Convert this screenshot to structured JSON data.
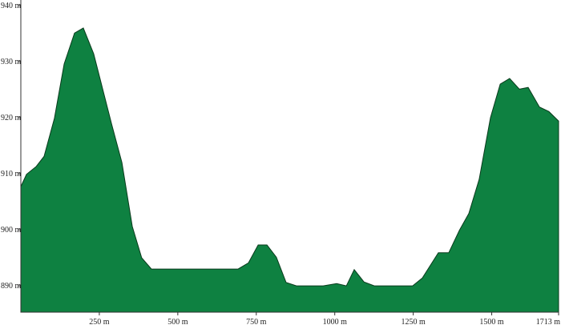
{
  "chart_data": {
    "type": "area",
    "x": [
      0,
      18,
      49,
      74,
      107,
      138,
      171,
      199,
      232,
      289,
      322,
      355,
      385,
      416,
      692,
      725,
      756,
      784,
      814,
      845,
      878,
      963,
      1006,
      1037,
      1062,
      1093,
      1126,
      1248,
      1279,
      1330,
      1363,
      1397,
      1427,
      1460,
      1496,
      1527,
      1557,
      1588,
      1616,
      1652,
      1682,
      1713
    ],
    "series": [
      {
        "color": "#0e8141",
        "values": [
          907.7,
          909.9,
          911.3,
          913.1,
          919.9,
          929.6,
          935.1,
          936,
          931.4,
          918.9,
          912,
          900.6,
          895,
          893,
          893,
          894.1,
          897.3,
          897.3,
          895.1,
          890.6,
          890,
          890,
          890.4,
          890,
          892.9,
          890.7,
          890,
          890,
          891.4,
          895.9,
          895.9,
          899.9,
          902.9,
          909,
          920,
          926,
          927,
          925.1,
          925.4,
          921.9,
          921.1,
          919.4
        ]
      }
    ],
    "xlim": [
      0,
      1713
    ],
    "ylim": [
      885.3,
      940
    ],
    "xticks": [
      {
        "value": 250,
        "label": "250 m"
      },
      {
        "value": 500,
        "label": "500 m"
      },
      {
        "value": 750,
        "label": "750 m"
      },
      {
        "value": 1000,
        "label": "1000 m"
      },
      {
        "value": 1250,
        "label": "1250 m"
      },
      {
        "value": 1500,
        "label": "1500 m"
      },
      {
        "value": 1713,
        "label": "1713 m"
      }
    ],
    "yticks": [
      {
        "value": 940,
        "label": "940 m"
      },
      {
        "value": 930,
        "label": "930 m"
      },
      {
        "value": 920,
        "label": "920 m"
      },
      {
        "value": 910,
        "label": "910 m"
      },
      {
        "value": 900,
        "label": "900 m"
      },
      {
        "value": 890,
        "label": "890 m"
      }
    ]
  }
}
